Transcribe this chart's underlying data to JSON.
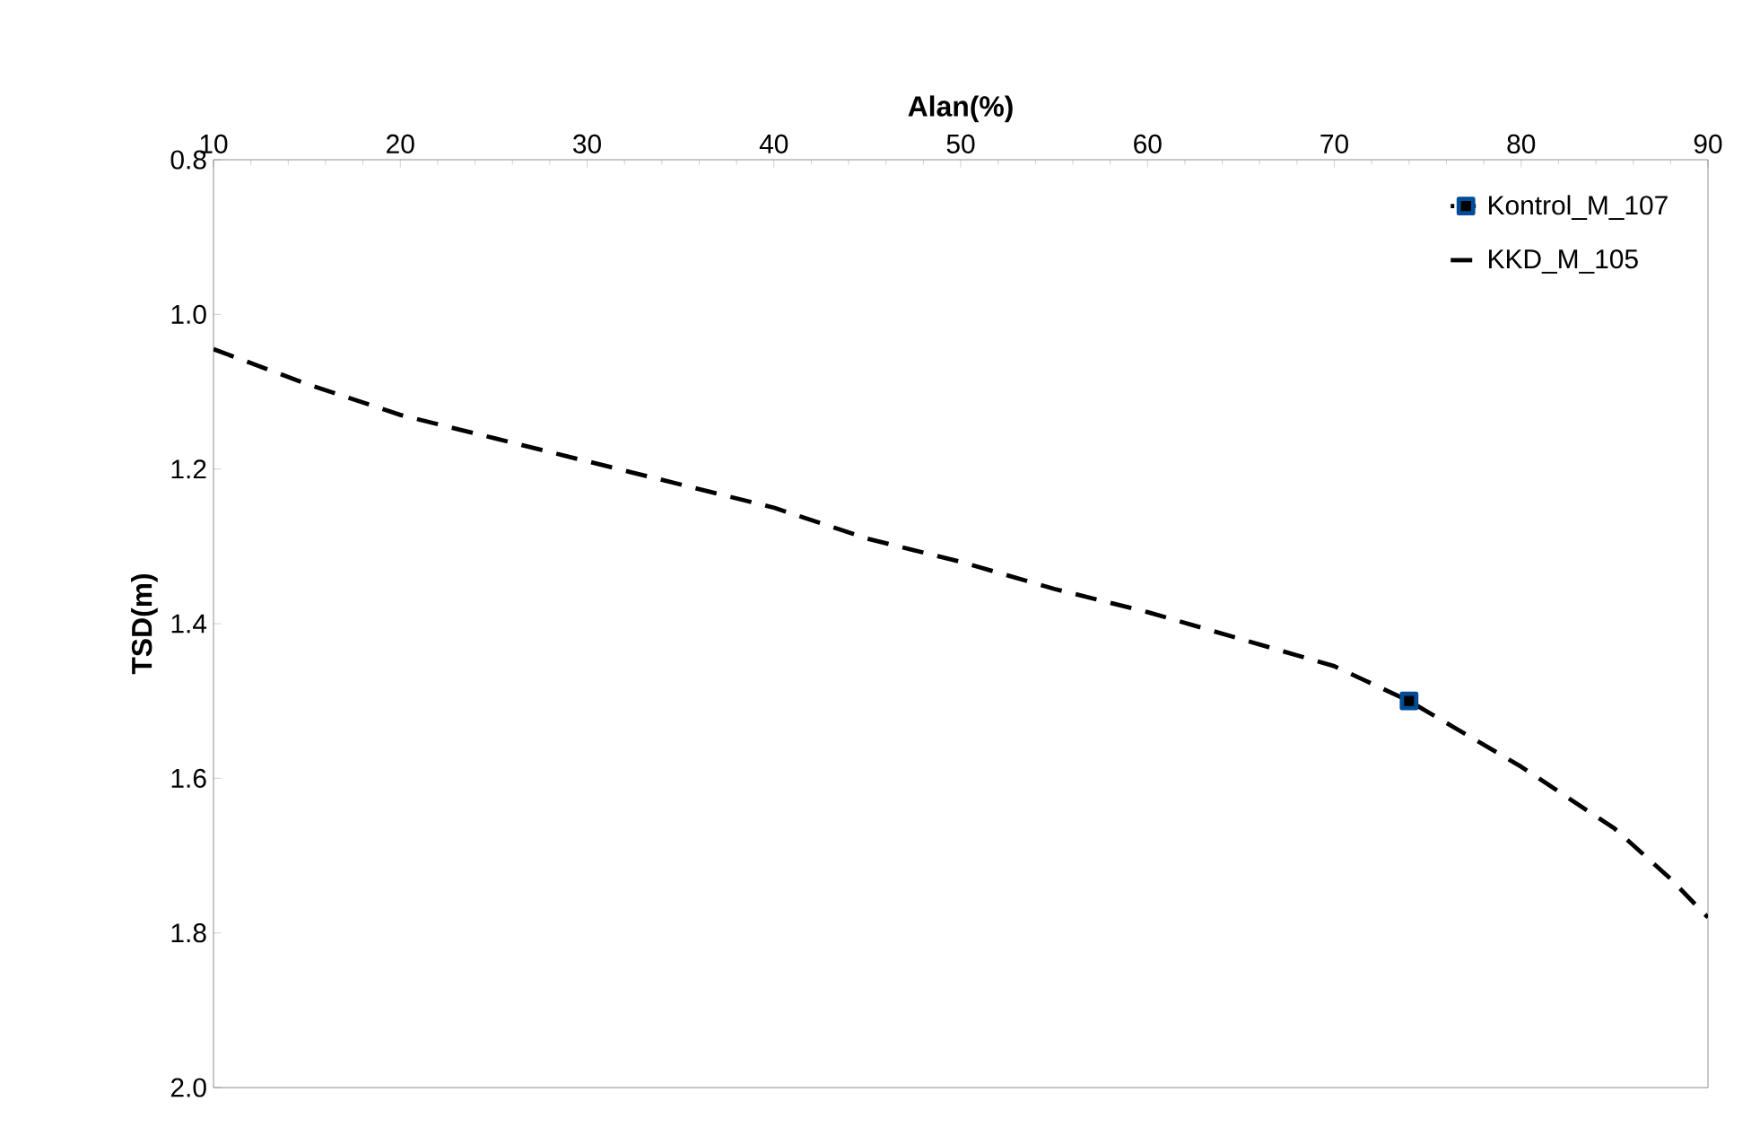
{
  "chart_data": {
    "type": "line",
    "xlabel": "Alan(%)",
    "ylabel": "TSD(m)",
    "xlim": [
      10,
      90
    ],
    "xticks": [
      10,
      20,
      30,
      40,
      50,
      60,
      70,
      80,
      90
    ],
    "ylim": [
      2.0,
      0.8
    ],
    "yticks": [
      0.8,
      {
        "value": 1,
        "label": "1.0"
      },
      1.2,
      1.4,
      1.6,
      1.8,
      {
        "value": 2,
        "label": "2.0"
      }
    ],
    "legend": "top right",
    "grid": false,
    "series": [
      {
        "name": "Kontrol_M_107",
        "color": "#000000",
        "marker": "square",
        "line_style": "dotted",
        "x": [
          74
        ],
        "values": [
          1.5
        ]
      },
      {
        "name": "KKD_M_105",
        "color": "#000000",
        "marker": "none",
        "line_style": "dashed",
        "x": [
          10,
          15,
          20,
          25,
          30,
          35,
          40,
          45,
          50,
          55,
          60,
          65,
          70,
          74,
          80,
          85,
          88,
          90
        ],
        "values": [
          1.045,
          1.09,
          1.13,
          1.16,
          1.19,
          1.22,
          1.25,
          1.29,
          1.32,
          1.355,
          1.385,
          1.42,
          1.455,
          1.5,
          1.585,
          1.665,
          1.73,
          1.78
        ]
      }
    ]
  }
}
